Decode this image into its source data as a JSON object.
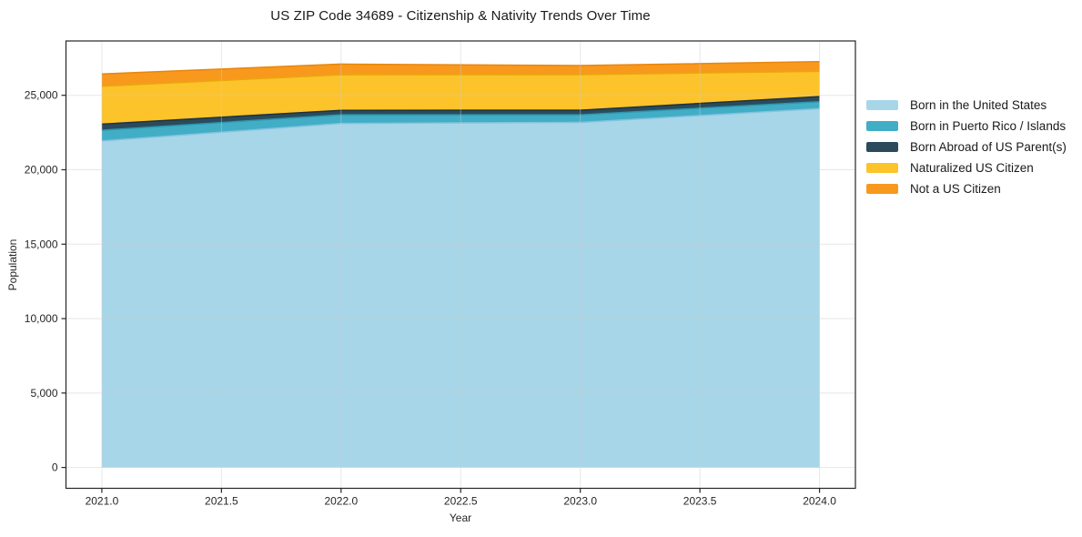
{
  "chart_data": {
    "type": "area",
    "stacked": true,
    "title": "US ZIP Code 34689 - Citizenship & Nativity Trends Over Time",
    "xlabel": "Year",
    "ylabel": "Population",
    "x": [
      2021,
      2022,
      2023,
      2024
    ],
    "series": [
      {
        "name": "Born in the United States",
        "color": "#A7D6E9",
        "edge_color": "#85C2DD",
        "values": [
          21930,
          23110,
          23180,
          24100
        ]
      },
      {
        "name": "Born in Puerto Rico / Islands",
        "color": "#41AEC6",
        "edge_color": "#2C96AE",
        "values": [
          720,
          580,
          510,
          470
        ]
      },
      {
        "name": "Born Abroad of US Parent(s)",
        "color": "#2B4B5C",
        "edge_color": "#1C333F",
        "values": [
          410,
          300,
          310,
          345
        ]
      },
      {
        "name": "Naturalized US Citizen",
        "color": "#FDC32B",
        "edge_color": "#E8A80C",
        "values": [
          2550,
          2390,
          2390,
          1700
        ]
      },
      {
        "name": "Not a US Citizen",
        "color": "#F8991D",
        "edge_color": "#E8860E",
        "values": [
          820,
          720,
          610,
          650
        ]
      }
    ],
    "x_ticks": {
      "values": [
        2021.0,
        2021.5,
        2022.0,
        2022.5,
        2023.0,
        2023.5,
        2024.0
      ],
      "labels": [
        "2021.0",
        "2021.5",
        "2022.0",
        "2022.5",
        "2023.0",
        "2023.5",
        "2024.0"
      ]
    },
    "y_ticks": {
      "values": [
        0,
        5000,
        10000,
        15000,
        20000,
        25000
      ],
      "labels": [
        "0",
        "5,000",
        "10,000",
        "15,000",
        "20,000",
        "25,000"
      ]
    },
    "xlim": [
      2020.85,
      2024.15
    ],
    "ylim": [
      -1400,
      28650
    ],
    "grid": true,
    "legend_position": "right",
    "colors": {
      "spine": "#262626",
      "grid": "#cccccc",
      "tick_text": "#262626"
    }
  }
}
